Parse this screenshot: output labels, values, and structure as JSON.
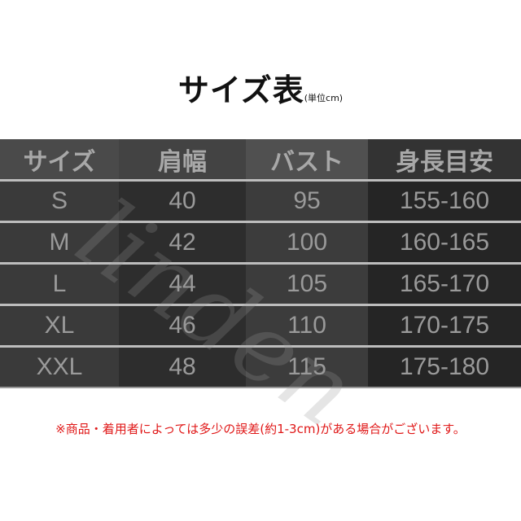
{
  "title": "サイズ表",
  "unit": "(単位cm)",
  "watermark": "linden",
  "table": {
    "headers": [
      "サイズ",
      "肩幅",
      "バスト",
      "身長目安"
    ],
    "rows": [
      [
        "S",
        "40",
        "95",
        "155-160"
      ],
      [
        "M",
        "42",
        "100",
        "160-165"
      ],
      [
        "L",
        "44",
        "105",
        "165-170"
      ],
      [
        "XL",
        "46",
        "110",
        "170-175"
      ],
      [
        "XXL",
        "48",
        "115",
        "175-180"
      ]
    ]
  },
  "note": "※商品・着用者によっては多少の誤差(約1-3cm)がある場合がございます。",
  "colors": {
    "note": "#e01818",
    "table_bg": "#2d2d2d"
  }
}
